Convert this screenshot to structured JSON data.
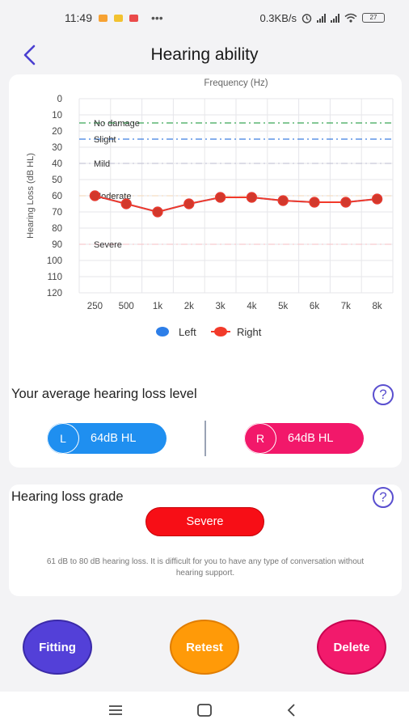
{
  "status_bar": {
    "time": "11:49",
    "dots": "•••",
    "network_speed": "0.3KB/s",
    "battery": "27",
    "icons": [
      "mi-icon",
      "folder-icon",
      "notification-icon",
      "alarm-icon",
      "signal-icon",
      "signal-icon",
      "wifi-icon",
      "battery-icon"
    ]
  },
  "header": {
    "title": "Hearing ability",
    "back_icon": "chevron-left-icon"
  },
  "chart_data": {
    "type": "line",
    "title": "Frequency (Hz)",
    "ylabel": "Hearing Loss (dB HL)",
    "categories": [
      "250",
      "500",
      "1k",
      "2k",
      "3k",
      "4k",
      "5k",
      "6k",
      "7k",
      "8k"
    ],
    "y_ticks": [
      "0",
      "10",
      "20",
      "30",
      "40",
      "50",
      "60",
      "70",
      "80",
      "90",
      "100",
      "110",
      "120"
    ],
    "ylim": [
      0,
      120
    ],
    "y_inverted": true,
    "grid": true,
    "legend_position": "bottom",
    "thresholds": [
      {
        "label": "No damage",
        "value": 15,
        "color": "#3aa757"
      },
      {
        "label": "Slight",
        "value": 25,
        "color": "#3e7fe0"
      },
      {
        "label": "Mild",
        "value": 40,
        "color": "#c8c8d8"
      },
      {
        "label": "Moderate",
        "value": 60,
        "color": "#f4ddc4"
      },
      {
        "label": "Severe",
        "value": 90,
        "color": "#f6c9cf"
      }
    ],
    "series": [
      {
        "name": "Left",
        "color": "#2d7ee8",
        "values": [
          60,
          65,
          70,
          65,
          61,
          61,
          63,
          64,
          64,
          62
        ]
      },
      {
        "name": "Right",
        "color": "#f23a2a",
        "values": [
          60,
          65,
          70,
          65,
          61,
          61,
          63,
          64,
          64,
          62
        ]
      }
    ]
  },
  "average_section": {
    "title": "Your average hearing loss level",
    "help_icon": "question-icon",
    "help_glyph": "?",
    "left": {
      "ear": "L",
      "value": "64dB HL",
      "color": "#1f8ff0"
    },
    "right": {
      "ear": "R",
      "value": "64dB HL",
      "color": "#f2186a"
    }
  },
  "grade_section": {
    "title": "Hearing loss grade",
    "help_glyph": "?",
    "grade": "Severe",
    "description": "61 dB to 80 dB hearing loss. It is difficult for you to have any type of conversation without hearing support."
  },
  "actions": {
    "fitting": {
      "label": "Fitting",
      "color": "#5340d8"
    },
    "retest": {
      "label": "Retest",
      "color": "#ff9a08"
    },
    "delete": {
      "label": "Delete",
      "color": "#f21a6c"
    }
  },
  "nav_bar": {
    "icons": [
      "menu-icon",
      "home-icon",
      "back-icon"
    ]
  }
}
